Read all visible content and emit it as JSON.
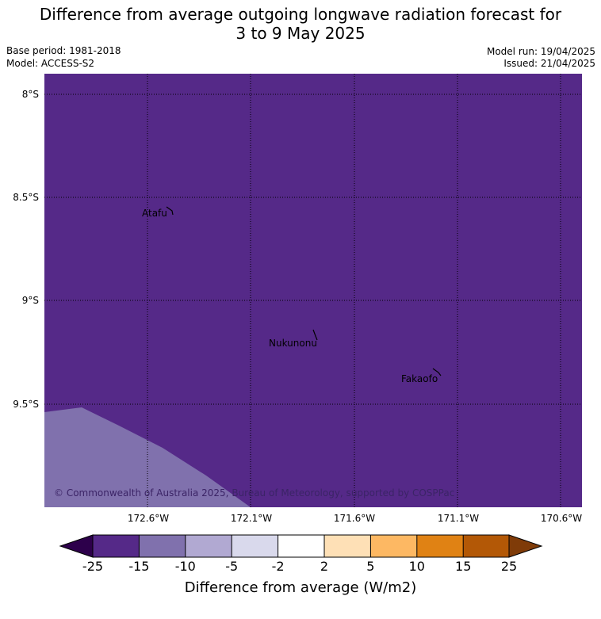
{
  "header": {
    "title_line1": "Difference from average outgoing longwave radiation forecast for",
    "title_line2": "3 to 9 May 2025",
    "base_period": "Base period: 1981-2018",
    "model": "Model: ACCESS-S2",
    "model_run": "Model run: 19/04/2025",
    "issued": "Issued: 21/04/2025"
  },
  "map": {
    "background_fill": "#552988",
    "region_fill": "#8071ad",
    "lat_labels": [
      "8°S",
      "8.5°S",
      "9°S",
      "9.5°S"
    ],
    "lon_labels": [
      "172.6°W",
      "172.1°W",
      "171.6°W",
      "171.1°W",
      "170.6°W"
    ],
    "places": [
      {
        "name": "Atafu"
      },
      {
        "name": "Nukunonu"
      },
      {
        "name": "Fakaofo"
      }
    ],
    "copyright": "© Commonwealth of Australia 2025, Bureau of Meteorology, supported by COSPPac"
  },
  "colorbar": {
    "label": "Difference from average (W/m2)",
    "ticks": [
      "-25",
      "-15",
      "-10",
      "-5",
      "-2",
      "2",
      "5",
      "10",
      "15",
      "25"
    ],
    "colors": [
      "#552988",
      "#8071ad",
      "#b1a9d2",
      "#d9d9ec",
      "#ffffff",
      "#fee0b6",
      "#fdb863",
      "#e08214",
      "#b35806"
    ],
    "low_extend_color": "#2d004b",
    "high_extend_color": "#7f3b08"
  }
}
